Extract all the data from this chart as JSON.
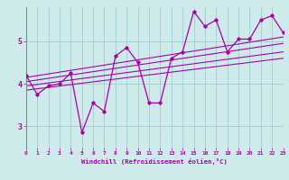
{
  "xlabel": "Windchill (Refroidissement éolien,°C)",
  "xlim": [
    0,
    23
  ],
  "ylim": [
    2.5,
    5.8
  ],
  "yticks": [
    3,
    4,
    5
  ],
  "xticks": [
    0,
    1,
    2,
    3,
    4,
    5,
    6,
    7,
    8,
    9,
    10,
    11,
    12,
    13,
    14,
    15,
    16,
    17,
    18,
    19,
    20,
    21,
    22,
    23
  ],
  "background_color": "#ceeaea",
  "line_color": "#aa00aa",
  "grid_color": "#9ecece",
  "series1_x": [
    0,
    1,
    2,
    3,
    4,
    5,
    6,
    7,
    8,
    9,
    10,
    11,
    12,
    13,
    14,
    15,
    16,
    17,
    18,
    19,
    20,
    21,
    22,
    23
  ],
  "series1_y": [
    4.2,
    3.75,
    3.95,
    4.0,
    4.25,
    2.85,
    3.55,
    3.35,
    4.65,
    4.85,
    4.5,
    3.55,
    3.55,
    4.6,
    4.75,
    5.7,
    5.35,
    5.5,
    4.75,
    5.05,
    5.05,
    5.5,
    5.6,
    5.2
  ],
  "line1_x": [
    0,
    23
  ],
  "line1_y": [
    3.95,
    4.75
  ],
  "line2_x": [
    0,
    23
  ],
  "line2_y": [
    4.05,
    4.95
  ],
  "line3_x": [
    0,
    23
  ],
  "line3_y": [
    4.15,
    5.1
  ],
  "line4_x": [
    0,
    23
  ],
  "line4_y": [
    3.85,
    4.6
  ]
}
